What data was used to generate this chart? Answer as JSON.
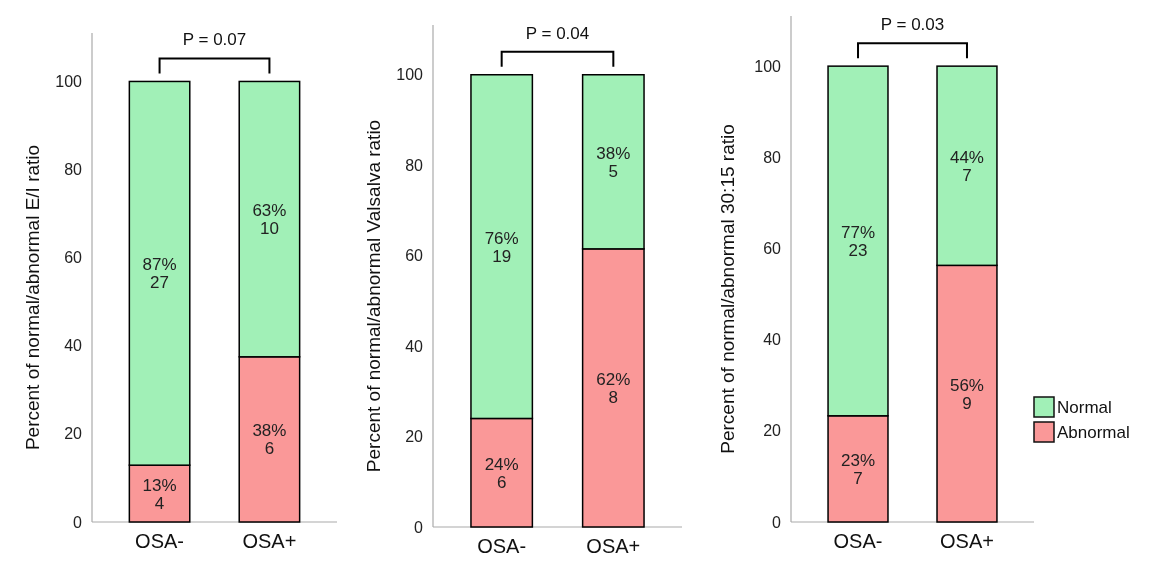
{
  "chart_data": [
    {
      "type": "bar",
      "stacked": true,
      "ylabel": "Percent of normal/abnormal E/I ratio",
      "categories": [
        "OSA-",
        "OSA+"
      ],
      "ylim": [
        0,
        111
      ],
      "yticks": [
        0,
        20,
        40,
        60,
        80,
        100
      ],
      "annotations": [
        "P = 0.07"
      ],
      "legend": false,
      "series": [
        {
          "color": "#fa9898",
          "values": [
            12.9,
            37.5
          ],
          "value_labels": [
            "13%\n4",
            "38%\n6"
          ]
        },
        {
          "color": "#a1f0b7",
          "values": [
            87.1,
            62.5
          ],
          "value_labels": [
            "87%\n27",
            "63%\n10"
          ]
        }
      ]
    },
    {
      "type": "bar",
      "stacked": true,
      "ylabel": "Percent of normal/abnormal Valsalva ratio",
      "categories": [
        "OSA-",
        "OSA+"
      ],
      "ylim": [
        0,
        111
      ],
      "yticks": [
        0,
        20,
        40,
        60,
        80,
        100
      ],
      "annotations": [
        "P = 0.04"
      ],
      "legend": false,
      "series": [
        {
          "color": "#fa9898",
          "values": [
            24,
            61.5
          ],
          "value_labels": [
            "24%\n6",
            "62%\n8"
          ]
        },
        {
          "color": "#a1f0b7",
          "values": [
            76,
            38.5
          ],
          "value_labels": [
            "76%\n19",
            "38%\n5"
          ]
        }
      ]
    },
    {
      "type": "bar",
      "stacked": true,
      "ylabel": "Percent of normal/abnormal 30:15 ratio",
      "categories": [
        "OSA-",
        "OSA+"
      ],
      "ylim": [
        0,
        111
      ],
      "yticks": [
        0,
        20,
        40,
        60,
        80,
        100
      ],
      "annotations": [
        "P = 0.03"
      ],
      "legend": "right",
      "series": [
        {
          "name": "Abnormal",
          "color": "#fa9898",
          "values": [
            23.3,
            56.3
          ],
          "value_labels": [
            "23%\n7",
            "56%\n9"
          ]
        },
        {
          "name": "Normal",
          "color": "#a1f0b7",
          "values": [
            76.7,
            43.7
          ],
          "value_labels": [
            "77%\n23",
            "44%\n7"
          ]
        }
      ]
    }
  ]
}
